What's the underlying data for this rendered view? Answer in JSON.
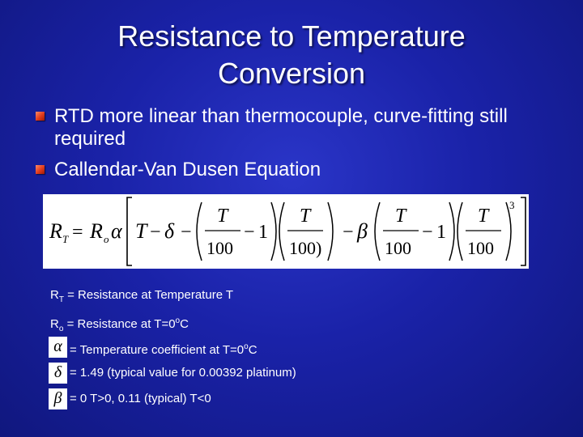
{
  "slide": {
    "title": "Resistance to Temperature Conversion",
    "bullets": [
      {
        "text": "RTD more linear than thermocouple, curve-fitting still required"
      },
      {
        "text": "Callendar-Van Dusen Equation"
      }
    ]
  },
  "equation": {
    "R": "R",
    "T_sub": "T",
    "equals": "=",
    "Ro": "R",
    "o_sub": "o",
    "alpha": "α",
    "T": "T",
    "minus": "−",
    "delta": "δ",
    "beta": "β",
    "one": "1",
    "hundred": "100",
    "hundred_paren": "100)",
    "exp": "3"
  },
  "definitions": [
    {
      "pre": "R",
      "sub": "T",
      "rest": " = Resistance at Temperature T"
    },
    {
      "pre": "R",
      "sub": "o",
      "rest": " = Resistance at T=0",
      "sup": "o",
      "tail": "C"
    },
    {
      "symbol": "α",
      "text": "= Temperature coefficient at T=0",
      "sup": "o",
      "tail": "C"
    },
    {
      "symbol": "δ",
      "text": "= 1.49 (typical value for 0.00392 platinum)"
    },
    {
      "symbol": "β",
      "text": "= 0  T>0, 0.11 (typical) T<0"
    }
  ]
}
